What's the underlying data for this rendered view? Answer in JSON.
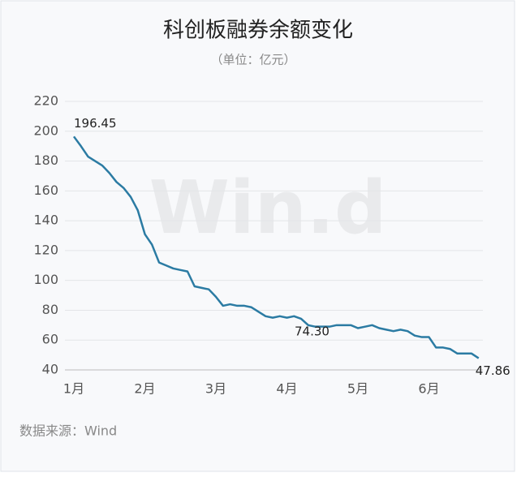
{
  "chart_data": {
    "type": "line",
    "title": "科创板融券余额变化",
    "subtitle": "（单位：亿元）",
    "source": "数据来源：Wind",
    "watermark": "Win.d",
    "categories": [
      "1月",
      null,
      null,
      null,
      null,
      null,
      null,
      null,
      null,
      null,
      "2月",
      null,
      null,
      null,
      null,
      null,
      null,
      null,
      null,
      null,
      "3月",
      null,
      null,
      null,
      null,
      null,
      null,
      null,
      null,
      null,
      "4月",
      null,
      null,
      null,
      null,
      null,
      null,
      null,
      null,
      null,
      "5月",
      null,
      null,
      null,
      null,
      null,
      null,
      null,
      null,
      null,
      "6月",
      null,
      null,
      null,
      null,
      null,
      null,
      null
    ],
    "series": [
      {
        "color": "#2b7ba3",
        "values": [
          196.45,
          190,
          183,
          180,
          177,
          172,
          166,
          162,
          156,
          147,
          131,
          124,
          112,
          110,
          108,
          107,
          106,
          96,
          95,
          94,
          89,
          83,
          84,
          83,
          83,
          82,
          79,
          76,
          75,
          76,
          75,
          76,
          74.3,
          70,
          69,
          69,
          69,
          70,
          70,
          70,
          68,
          69,
          70,
          68,
          67,
          66,
          67,
          66,
          63,
          62,
          62,
          55,
          55,
          54,
          51,
          51,
          51,
          47.86
        ],
        "value_labels": [
          "196.45",
          null,
          null,
          null,
          null,
          null,
          null,
          null,
          null,
          null,
          null,
          null,
          null,
          null,
          null,
          null,
          null,
          null,
          null,
          null,
          null,
          null,
          null,
          null,
          null,
          null,
          null,
          null,
          null,
          null,
          null,
          null,
          "74.30",
          null,
          null,
          null,
          null,
          null,
          null,
          null,
          null,
          null,
          null,
          null,
          null,
          null,
          null,
          null,
          null,
          null,
          null,
          null,
          null,
          null,
          null,
          null,
          null,
          "47.86"
        ]
      }
    ],
    "ylim": [
      40,
      220
    ],
    "yticks": [
      40,
      60,
      80,
      100,
      120,
      140,
      160,
      180,
      200,
      220
    ],
    "grid": true
  }
}
